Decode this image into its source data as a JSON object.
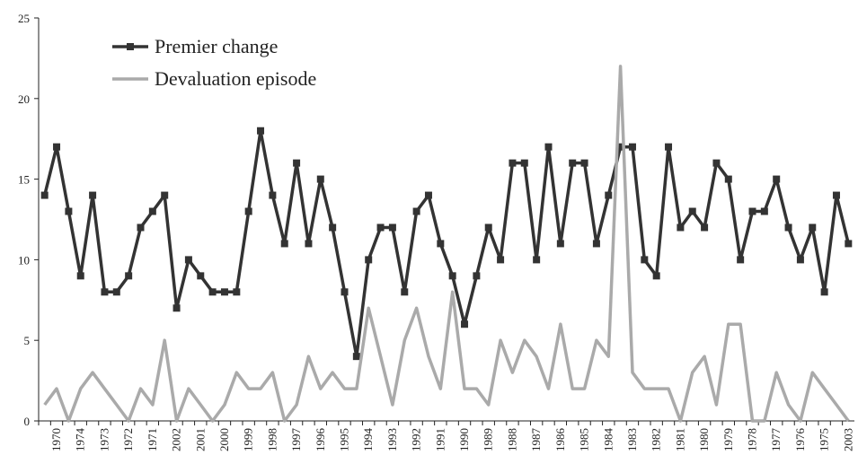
{
  "chart_data": {
    "type": "line",
    "categories": [
      null,
      "1970",
      null,
      "1974",
      null,
      "1973",
      null,
      "1972",
      null,
      "1971",
      null,
      "2002",
      null,
      "2001",
      null,
      "2000",
      null,
      "1999",
      null,
      "1998",
      null,
      "1997",
      null,
      "1996",
      null,
      "1995",
      null,
      "1994",
      null,
      "1993",
      null,
      "1992",
      null,
      "1991",
      null,
      "1990",
      null,
      "1989",
      null,
      "1988",
      null,
      "1987",
      null,
      "1986",
      null,
      "1985",
      null,
      "1984",
      null,
      "1983",
      null,
      "1982",
      null,
      "1981",
      null,
      "1980",
      null,
      "1979",
      null,
      "1978",
      null,
      "1977",
      null,
      "1976",
      null,
      "1975",
      null,
      "2003"
    ],
    "series": [
      {
        "name": "Premier change",
        "color": "#333333",
        "marker": "square",
        "values": [
          14,
          17,
          13,
          9,
          14,
          8,
          8,
          9,
          12,
          13,
          14,
          7,
          10,
          9,
          8,
          8,
          8,
          13,
          18,
          14,
          11,
          16,
          11,
          15,
          12,
          8,
          4,
          10,
          12,
          12,
          8,
          13,
          14,
          11,
          9,
          6,
          9,
          12,
          10,
          16,
          16,
          10,
          17,
          11,
          16,
          16,
          11,
          14,
          17,
          17,
          10,
          9,
          17,
          12,
          13,
          12,
          16,
          15,
          10,
          13,
          13,
          15,
          12,
          10,
          12,
          8,
          14,
          11
        ]
      },
      {
        "name": "Devaluation episode",
        "color": "#aaaaaa",
        "values": [
          1,
          2,
          0,
          2,
          3,
          2,
          1,
          0,
          2,
          1,
          5,
          0,
          2,
          1,
          0,
          1,
          3,
          2,
          2,
          3,
          0,
          1,
          4,
          2,
          3,
          2,
          2,
          7,
          4,
          1,
          5,
          7,
          4,
          2,
          8,
          2,
          2,
          1,
          5,
          3,
          5,
          4,
          2,
          6,
          2,
          2,
          5,
          4,
          22,
          3,
          2,
          2,
          2,
          0,
          3,
          4,
          1,
          6,
          6,
          0,
          0,
          3,
          1,
          0,
          3,
          2,
          1,
          0
        ]
      }
    ],
    "ylim": [
      0,
      25
    ],
    "yticks": [
      0,
      5,
      10,
      15,
      20,
      25
    ],
    "grid": false,
    "legend": "top-left"
  }
}
